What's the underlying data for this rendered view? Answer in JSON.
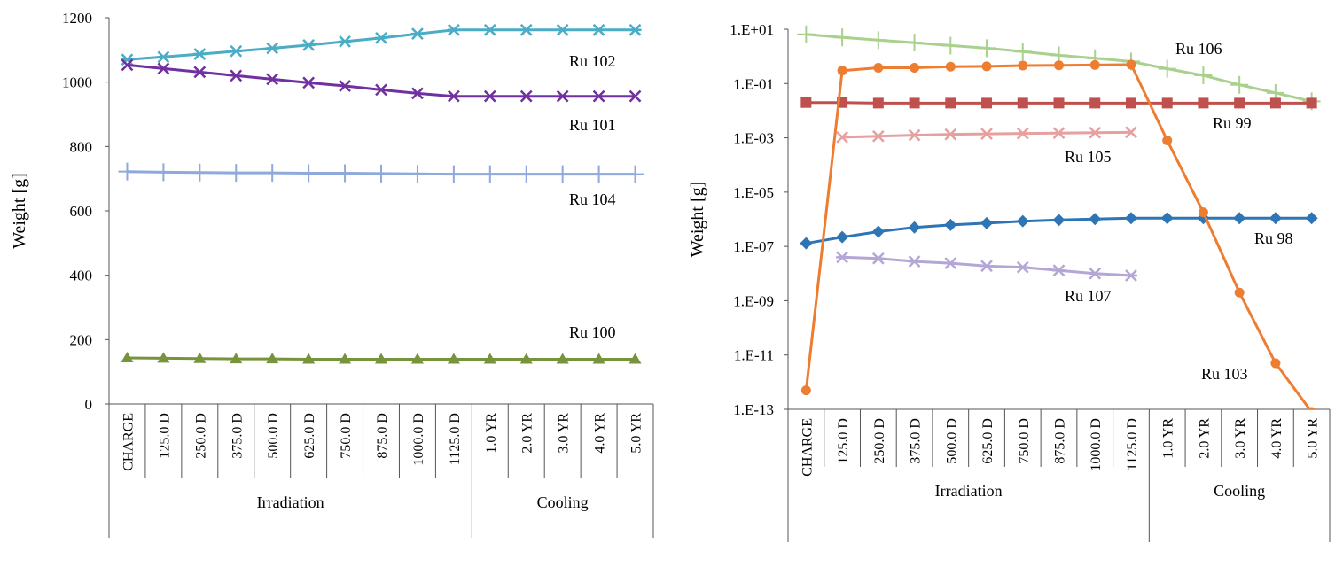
{
  "chart_data": [
    {
      "type": "line",
      "ylabel": "Weight [g]",
      "ylim": [
        0,
        1200
      ],
      "yticks": [
        0,
        200,
        400,
        600,
        800,
        1000,
        1200
      ],
      "categories": [
        "CHARGE",
        "125.0 D",
        "250.0 D",
        "375.0 D",
        "500.0 D",
        "625.0 D",
        "750.0 D",
        "875.0 D",
        "1000.0 D",
        "1125.0 D",
        "1.0 YR",
        "2.0 YR",
        "3.0 YR",
        "4.0 YR",
        "5.0 YR"
      ],
      "groups": [
        {
          "name": "Irradiation",
          "count": 10
        },
        {
          "name": "Cooling",
          "count": 5
        }
      ],
      "series": [
        {
          "name": "Ru 102",
          "label": "Ru 102",
          "color": "#4BACC6",
          "marker": "asterisk",
          "values": [
            1070,
            1078,
            1087,
            1096,
            1105,
            1115,
            1126,
            1137,
            1150,
            1162,
            1162,
            1162,
            1162,
            1162,
            1162
          ]
        },
        {
          "name": "Ru 101",
          "label": "Ru 101",
          "color": "#7030A0",
          "marker": "x",
          "values": [
            1053,
            1042,
            1031,
            1020,
            1009,
            998,
            988,
            976,
            965,
            956,
            956,
            956,
            956,
            956,
            956
          ]
        },
        {
          "name": "Ru 104",
          "label": "Ru 104",
          "color": "#8EA9DB",
          "marker": "plus",
          "values": [
            722,
            720,
            719,
            718,
            718,
            717,
            717,
            716,
            715,
            714,
            714,
            714,
            714,
            714,
            714
          ]
        },
        {
          "name": "Ru 100",
          "label": "Ru 100",
          "color": "#77933C",
          "marker": "triangle",
          "values": [
            143,
            142,
            141,
            140,
            140,
            139,
            139,
            139,
            139,
            139,
            139,
            139,
            139,
            139,
            139
          ]
        }
      ]
    },
    {
      "type": "line",
      "yscale": "log",
      "ylabel": "Weight [g]",
      "ylim_exp": [
        -13,
        1
      ],
      "yticks": [
        {
          "exp": -13,
          "label": "1.E-13"
        },
        {
          "exp": -11,
          "label": "1.E-11"
        },
        {
          "exp": -9,
          "label": "1.E-09"
        },
        {
          "exp": -7,
          "label": "1.E-07"
        },
        {
          "exp": -5,
          "label": "1.E-05"
        },
        {
          "exp": -3,
          "label": "1.E-03"
        },
        {
          "exp": -1,
          "label": "1.E-01"
        },
        {
          "exp": 1,
          "label": "1.E+01"
        }
      ],
      "categories": [
        "CHARGE",
        "125.0 D",
        "250.0 D",
        "375.0 D",
        "500.0 D",
        "625.0 D",
        "750.0 D",
        "875.0 D",
        "1000.0 D",
        "1125.0 D",
        "1.0 YR",
        "2.0 YR",
        "3.0 YR",
        "4.0 YR",
        "5.0 YR"
      ],
      "groups": [
        {
          "name": "Irradiation",
          "count": 10
        },
        {
          "name": "Cooling",
          "count": 5
        }
      ],
      "series": [
        {
          "name": "Ru 106",
          "label": "Ru 106",
          "color": "#A9D18E",
          "marker": "plus",
          "values": [
            6.5,
            5.0,
            4.0,
            3.2,
            2.5,
            2.0,
            1.5,
            1.1,
            0.85,
            0.65,
            0.35,
            0.2,
            0.09,
            0.045,
            0.022
          ]
        },
        {
          "name": "Ru 99",
          "label": "Ru 99",
          "color": "#C0504D",
          "marker": "square",
          "values": [
            0.02,
            0.02,
            0.019,
            0.019,
            0.019,
            0.019,
            0.019,
            0.019,
            0.019,
            0.019,
            0.019,
            0.019,
            0.019,
            0.019,
            0.019
          ]
        },
        {
          "name": "Ru 105",
          "label": "Ru 105",
          "color": "#E6A0A0",
          "marker": "x",
          "values": [
            null,
            0.00105,
            0.00115,
            0.00125,
            0.00135,
            0.0014,
            0.00145,
            0.0015,
            0.00155,
            0.0016,
            null,
            null,
            null,
            null,
            null
          ]
        },
        {
          "name": "Ru 98",
          "label": "Ru 98",
          "color": "#2E75B6",
          "marker": "diamond",
          "values": [
            1.3e-07,
            2.2e-07,
            3.5e-07,
            5e-07,
            6.2e-07,
            7.2e-07,
            8.5e-07,
            9.4e-07,
            1.02e-06,
            1.1e-06,
            1.1e-06,
            1.1e-06,
            1.1e-06,
            1.1e-06,
            1.1e-06
          ]
        },
        {
          "name": "Ru 107",
          "label": "Ru 107",
          "color": "#B4A7D6",
          "marker": "asterisk",
          "values": [
            null,
            4e-08,
            3.6e-08,
            2.8e-08,
            2.4e-08,
            1.9e-08,
            1.7e-08,
            1.3e-08,
            1e-08,
            8.5e-09,
            null,
            null,
            null,
            null,
            null
          ]
        },
        {
          "name": "Ru 103",
          "label": "Ru 103",
          "color": "#ED7D31",
          "marker": "circle",
          "values": [
            5e-13,
            0.3,
            0.38,
            0.38,
            0.42,
            0.43,
            0.46,
            0.47,
            0.48,
            0.5,
            0.0008,
            1.8e-06,
            2e-09,
            5e-12,
            8e-14
          ]
        }
      ]
    }
  ]
}
